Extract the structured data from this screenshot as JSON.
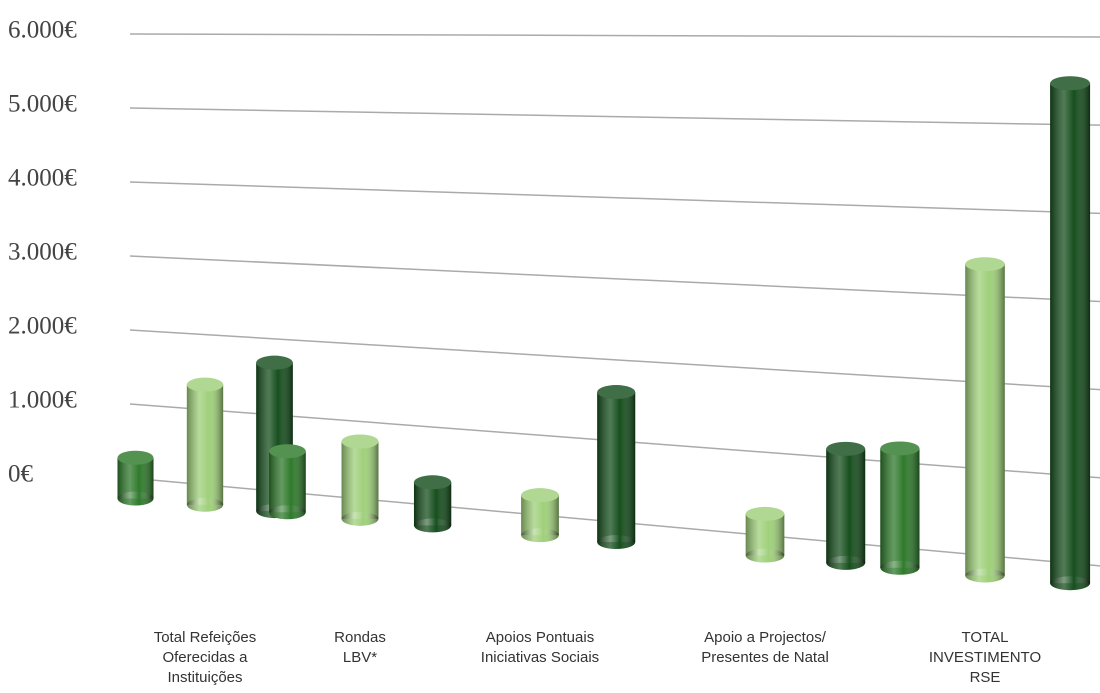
{
  "chart_data": {
    "type": "bar",
    "categories": [
      "Total Refeições\nOferecidas a\nInstituições",
      "Rondas\nLBV*",
      "Apoios Pontuais\nIniciativas Sociais",
      "Apoio a Projectos/\nPresentes de Natal",
      "TOTAL\nINVESTIMENTO\nRSE"
    ],
    "series": [
      {
        "color": "#2f7a2c",
        "values": [
          550,
          800,
          null,
          null,
          1400
        ]
      },
      {
        "color": "#9fd07a",
        "values": [
          1600,
          1000,
          500,
          500,
          3600
        ]
      },
      {
        "color": "#174f1e",
        "values": [
          1950,
          550,
          1850,
          1350,
          5700
        ]
      }
    ],
    "ylim": [
      0,
      6000
    ],
    "yticks": [
      {
        "value": 0,
        "label": "0€"
      },
      {
        "value": 1000,
        "label": "1.000€"
      },
      {
        "value": 2000,
        "label": "2.000€"
      },
      {
        "value": 3000,
        "label": "3.000€"
      },
      {
        "value": 4000,
        "label": "4.000€"
      },
      {
        "value": 5000,
        "label": "5.000€"
      },
      {
        "value": 6000,
        "label": "6.000€"
      }
    ],
    "grid": true
  }
}
